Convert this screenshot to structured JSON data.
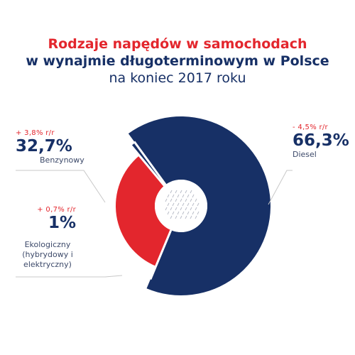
{
  "title": {
    "line1": "Rodzaje napędów w samochodach",
    "line2": "w wynajmie długoterminowym w Polsce",
    "line3": "na koniec 2017 roku"
  },
  "labels": {
    "benzyna": {
      "change": "+ 3,8% r/r",
      "pct": "32,7%",
      "name": "Benzynowy"
    },
    "eko": {
      "change": "+ 0,7% r/r",
      "pct": "1%",
      "name_lines": [
        "Ekologiczny",
        "(hybrydowy i",
        "elektryczny)"
      ]
    },
    "diesel": {
      "change": "- 4,5% r/r",
      "pct": "66,3%",
      "name": "Diesel"
    }
  },
  "colors": {
    "diesel": "#173066",
    "benzyna": "#e3262d",
    "eko": "#173066",
    "title_red": "#e3262d",
    "title_navy": "#173066",
    "leader": "#c8c8c8"
  },
  "chart_data": {
    "type": "pie",
    "title": "Rodzaje napędów w samochodach w wynajmie długoterminowym w Polsce na koniec 2017 roku",
    "categories": [
      "Diesel",
      "Benzynowy",
      "Ekologiczny (hybrydowy i elektryczny)"
    ],
    "values": [
      66.3,
      32.7,
      1.0
    ],
    "yoy_change": [
      "- 4,5% r/r",
      "+ 3,8% r/r",
      "+ 0,7% r/r"
    ],
    "legend": "none"
  }
}
